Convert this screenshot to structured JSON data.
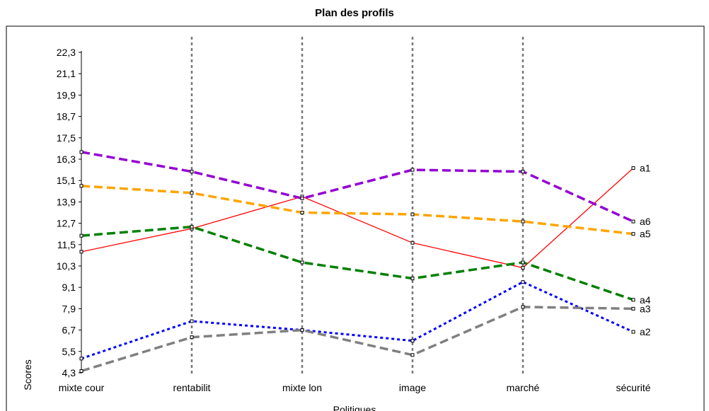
{
  "chart_data": {
    "type": "line",
    "title": "Plan des profils",
    "xlabel": "Politiques",
    "ylabel": "Scores",
    "categories": [
      "mixte cour",
      "rentabilit",
      "mixte lon",
      "image",
      "marché",
      "sécurité"
    ],
    "y_ticks": [
      "4,3",
      "5,5",
      "6,7",
      "7,9",
      "9,1",
      "10,3",
      "11,5",
      "12,7",
      "13,9",
      "15,1",
      "16,3",
      "17,5",
      "18,7",
      "19,9",
      "21,1",
      "22,3"
    ],
    "ylim": [
      4.3,
      23.5
    ],
    "vertical_gridlines": true,
    "series": [
      {
        "name": "a1",
        "color": "#ff0000",
        "style": "solid",
        "values": [
          11.1,
          12.4,
          14.2,
          11.6,
          10.2,
          15.8
        ]
      },
      {
        "name": "a2",
        "color": "#0000ff",
        "style": "dotted",
        "values": [
          5.1,
          7.2,
          6.7,
          6.1,
          9.4,
          6.6
        ]
      },
      {
        "name": "a3",
        "color": "#808080",
        "style": "dashed",
        "values": [
          4.4,
          6.3,
          6.7,
          5.3,
          8.0,
          7.9
        ]
      },
      {
        "name": "a4",
        "color": "#008000",
        "style": "dashed",
        "values": [
          12.0,
          12.5,
          10.5,
          9.6,
          10.5,
          8.4
        ]
      },
      {
        "name": "a5",
        "color": "#ffa500",
        "style": "dashed",
        "values": [
          14.8,
          14.4,
          13.3,
          13.2,
          12.8,
          12.1
        ]
      },
      {
        "name": "a6",
        "color": "#9400d3",
        "style": "dashed",
        "values": [
          16.7,
          15.6,
          14.1,
          15.7,
          15.6,
          12.8
        ]
      }
    ]
  }
}
